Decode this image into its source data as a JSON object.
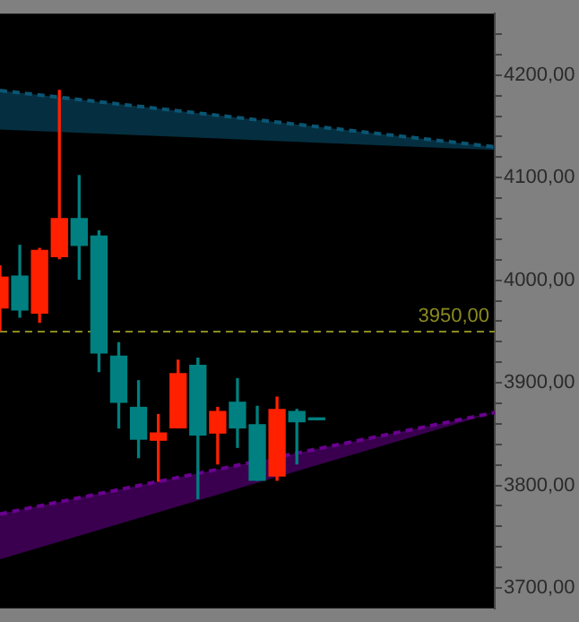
{
  "chart_data": {
    "type": "candlestick",
    "categories": [
      null,
      null,
      null,
      null,
      null,
      null,
      null,
      null,
      null,
      null,
      null,
      null,
      null,
      null,
      null,
      null,
      null,
      null,
      null,
      null,
      null,
      null,
      null,
      null,
      null,
      null
    ],
    "ohlc": [
      [
        3973,
        4014,
        3951,
        4003
      ],
      [
        4004,
        4034,
        3964,
        3971
      ],
      [
        3968,
        4031,
        3959,
        4029
      ],
      [
        4023,
        4185,
        4021,
        4060
      ],
      [
        4060,
        4102,
        4001,
        4034
      ],
      [
        4043,
        4048,
        3911,
        3929
      ],
      [
        3926,
        3939,
        3856,
        3881
      ],
      [
        3876,
        3902,
        3827,
        3845
      ],
      [
        3844,
        3869,
        3804,
        3851
      ],
      [
        3856,
        3922,
        3856,
        3909
      ],
      [
        3917,
        3924,
        3787,
        3849
      ],
      [
        3851,
        3876,
        3821,
        3872
      ],
      [
        3881,
        3904,
        3837,
        3856
      ],
      [
        3859,
        3877,
        3805,
        3805
      ],
      [
        3809,
        3886,
        3805,
        3874
      ],
      [
        3872,
        3874,
        3821,
        3862
      ],
      [
        3864,
        3864,
        3864,
        3864
      ],
      null,
      null,
      null,
      null,
      null,
      null,
      null,
      null,
      null
    ],
    "colors": [
      "#ff2000",
      "#008080",
      "#ff2000",
      "#ff2000",
      "#008080",
      "#008080",
      "#008080",
      "#008080",
      "#ff2000",
      "#ff2000",
      "#008080",
      "#ff2000",
      "#008080",
      "#008080",
      "#ff2000",
      "#008080",
      "#008080",
      null,
      null,
      null,
      null,
      null,
      null,
      null,
      null,
      null
    ],
    "series": [
      {
        "type": "line",
        "color": "#0a5674",
        "line_style": "dashed",
        "values": [
          4185,
          null,
          null,
          null,
          null,
          null,
          null,
          null,
          null,
          null,
          null,
          null,
          null,
          null,
          null,
          null,
          null,
          null,
          null,
          null,
          null,
          null,
          null,
          null,
          null,
          4130
        ],
        "lower": [
          4147,
          null,
          null,
          null,
          null,
          null,
          null,
          null,
          null,
          null,
          null,
          null,
          null,
          null,
          null,
          null,
          null,
          null,
          null,
          null,
          null,
          null,
          null,
          null,
          null,
          4127
        ],
        "upper": [
          4185,
          null,
          null,
          null,
          null,
          null,
          null,
          null,
          null,
          null,
          null,
          null,
          null,
          null,
          null,
          null,
          null,
          null,
          null,
          null,
          null,
          null,
          null,
          null,
          null,
          4130
        ]
      },
      {
        "type": "line",
        "color": "#6a0090",
        "line_style": "dashed",
        "values": [
          3772,
          null,
          null,
          null,
          null,
          null,
          null,
          null,
          null,
          null,
          null,
          null,
          null,
          null,
          null,
          null,
          null,
          null,
          null,
          null,
          null,
          null,
          null,
          null,
          null,
          3871
        ],
        "lower": [
          3728,
          null,
          null,
          null,
          null,
          null,
          null,
          null,
          null,
          null,
          null,
          null,
          null,
          null,
          null,
          null,
          null,
          null,
          null,
          null,
          null,
          null,
          null,
          null,
          null,
          3871
        ],
        "upper": [
          3772,
          null,
          null,
          null,
          null,
          null,
          null,
          null,
          null,
          null,
          null,
          null,
          null,
          null,
          null,
          null,
          null,
          null,
          null,
          null,
          null,
          null,
          null,
          null,
          null,
          3871
        ]
      }
    ],
    "ylim": [
      3680,
      4260
    ],
    "yticks": [
      {
        "value": 3700,
        "label": "3700,00"
      },
      {
        "value": 3720,
        "label": null
      },
      {
        "value": 3740,
        "label": null
      },
      {
        "value": 3760,
        "label": null
      },
      {
        "value": 3780,
        "label": null
      },
      {
        "value": 3800,
        "label": "3800,00"
      },
      {
        "value": 3820,
        "label": null
      },
      {
        "value": 3840,
        "label": null
      },
      {
        "value": 3860,
        "label": null
      },
      {
        "value": 3880,
        "label": null
      },
      {
        "value": 3900,
        "label": "3900,00"
      },
      {
        "value": 3920,
        "label": null
      },
      {
        "value": 3940,
        "label": null
      },
      {
        "value": 3960,
        "label": null
      },
      {
        "value": 3980,
        "label": null
      },
      {
        "value": 4000,
        "label": "4000,00"
      },
      {
        "value": 4020,
        "label": null
      },
      {
        "value": 4040,
        "label": null
      },
      {
        "value": 4060,
        "label": null
      },
      {
        "value": 4080,
        "label": null
      },
      {
        "value": 4100,
        "label": "4100,00"
      },
      {
        "value": 4120,
        "label": null
      },
      {
        "value": 4140,
        "label": null
      },
      {
        "value": 4160,
        "label": null
      },
      {
        "value": 4180,
        "label": null
      },
      {
        "value": 4200,
        "label": "4200,00"
      },
      {
        "value": 4220,
        "label": null
      },
      {
        "value": 4240,
        "label": null
      }
    ],
    "ref_lines": [
      {
        "axis": "y",
        "value": 3950,
        "label": "3950,00",
        "color": "#8a8a20",
        "line_style": "dashed"
      }
    ],
    "tick_labels": "y"
  }
}
